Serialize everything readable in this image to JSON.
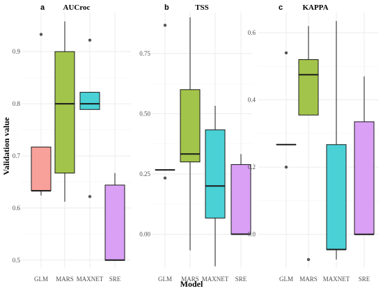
{
  "ylabel": "Validation value",
  "xlabel": "Model",
  "colors": {
    "GLM": "#f8a09a",
    "MARS": "#a3c44a",
    "MAXNET": "#49d1d6",
    "SRE": "#d9a0f5",
    "grid": "#ebebeb",
    "line": "#1a1a1a",
    "outlier": "#555555"
  },
  "chart_data": [
    {
      "type": "box",
      "letter": "a",
      "title": "AUCroc",
      "categories": [
        "GLM",
        "MARS",
        "MAXNET",
        "SRE"
      ],
      "ylim": [
        0.485,
        0.975
      ],
      "yticks": [
        0.5,
        0.6,
        0.7,
        0.8,
        0.9
      ],
      "yticklabels": [
        "0.5",
        "0.6",
        "0.7",
        "0.8",
        "0.9"
      ],
      "boxes": [
        {
          "name": "GLM",
          "min": 0.624,
          "q1": 0.633,
          "median": 0.633,
          "q3": 0.717,
          "max": 0.717,
          "outliers": [
            0.933
          ]
        },
        {
          "name": "MARS",
          "min": 0.612,
          "q1": 0.667,
          "median": 0.8,
          "q3": 0.9,
          "max": 0.958,
          "outliers": []
        },
        {
          "name": "MAXNET",
          "min": 0.789,
          "q1": 0.789,
          "median": 0.8,
          "q3": 0.822,
          "max": 0.822,
          "outliers": [
            0.922,
            0.622
          ]
        },
        {
          "name": "SRE",
          "min": 0.5,
          "q1": 0.5,
          "median": 0.5,
          "q3": 0.644,
          "max": 0.667,
          "outliers": []
        }
      ]
    },
    {
      "type": "box",
      "letter": "b",
      "title": "TSS",
      "categories": [
        "GLM",
        "MARS",
        "MAXNET",
        "SRE"
      ],
      "ylim": [
        -0.14,
        0.92
      ],
      "yticks": [
        0.0,
        0.25,
        0.5,
        0.75
      ],
      "yticklabels": [
        "0.00",
        "0.25",
        "0.50",
        "0.75"
      ],
      "boxes": [
        {
          "name": "GLM",
          "min": 0.267,
          "q1": 0.267,
          "median": 0.267,
          "q3": 0.267,
          "max": 0.267,
          "outliers": [
            0.867,
            0.233
          ]
        },
        {
          "name": "MARS",
          "min": -0.067,
          "q1": 0.3,
          "median": 0.333,
          "q3": 0.6,
          "max": 0.9,
          "outliers": []
        },
        {
          "name": "MAXNET",
          "min": -0.133,
          "q1": 0.067,
          "median": 0.2,
          "q3": 0.433,
          "max": 0.533,
          "outliers": []
        },
        {
          "name": "SRE",
          "min": 0.0,
          "q1": 0.0,
          "median": 0.0,
          "q3": 0.289,
          "max": 0.333,
          "outliers": []
        }
      ]
    },
    {
      "type": "box",
      "letter": "c",
      "title": "KAPPA",
      "categories": [
        "GLM",
        "MARS",
        "MAXNET",
        "SRE"
      ],
      "ylim": [
        -0.1,
        0.66
      ],
      "yticks": [
        0.0,
        0.2,
        0.4,
        0.6
      ],
      "yticklabels": [
        "0.0",
        "0.2",
        "0.4",
        "0.6"
      ],
      "boxes": [
        {
          "name": "GLM",
          "min": 0.267,
          "q1": 0.267,
          "median": 0.267,
          "q3": 0.267,
          "max": 0.267,
          "outliers": [
            0.54,
            0.2
          ]
        },
        {
          "name": "MARS",
          "min": 0.355,
          "q1": 0.355,
          "median": 0.475,
          "q3": 0.52,
          "max": 0.62,
          "outliers": [
            -0.075
          ]
        },
        {
          "name": "MAXNET",
          "min": -0.075,
          "q1": -0.045,
          "median": -0.045,
          "q3": 0.267,
          "max": 0.635,
          "outliers": []
        },
        {
          "name": "SRE",
          "min": 0.0,
          "q1": 0.0,
          "median": 0.0,
          "q3": 0.335,
          "max": 0.47,
          "outliers": []
        }
      ]
    }
  ]
}
